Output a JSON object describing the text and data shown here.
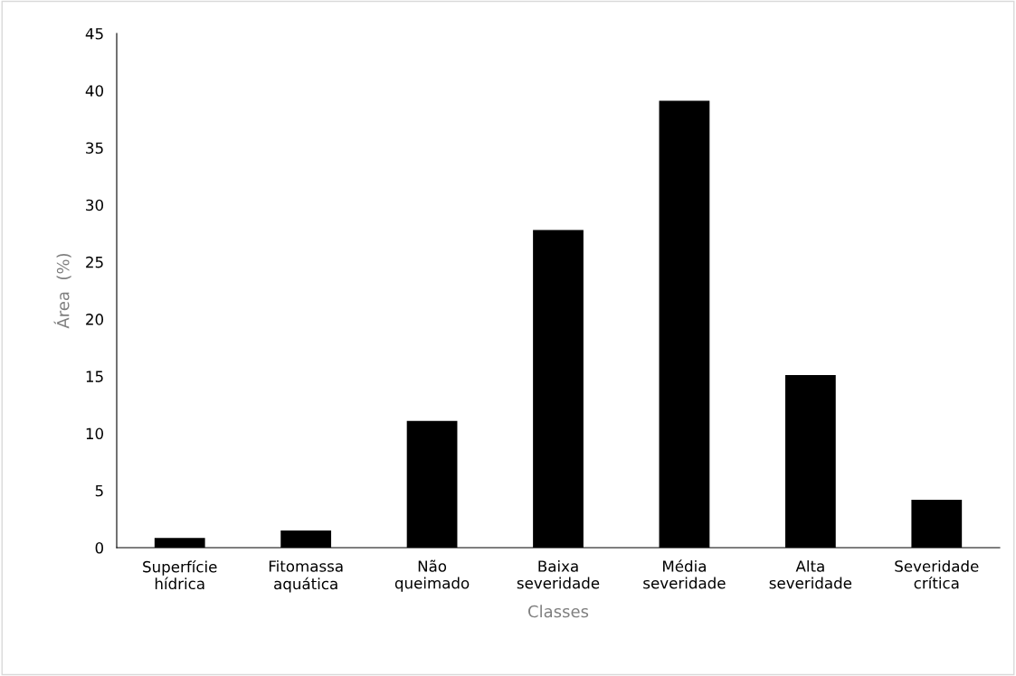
{
  "chart_data": {
    "type": "bar",
    "xlabel": "Classes",
    "ylabel": "Área  (%)",
    "categories": [
      "Superfície\nhídrica",
      "Fitomassa\naquática",
      "Não\nqueimado",
      "Baixa\nseveridade",
      "Média\nseveridade",
      "Alta\nseveridade",
      "Severidade\ncrítica"
    ],
    "values": [
      0.85,
      1.5,
      11.1,
      27.8,
      39.1,
      15.1,
      4.2
    ],
    "color": "#000000",
    "ylim": [
      0,
      45
    ],
    "yticks": [
      0,
      5,
      10,
      15,
      20,
      25,
      30,
      35,
      40,
      45
    ],
    "grid": false,
    "legend": false
  }
}
